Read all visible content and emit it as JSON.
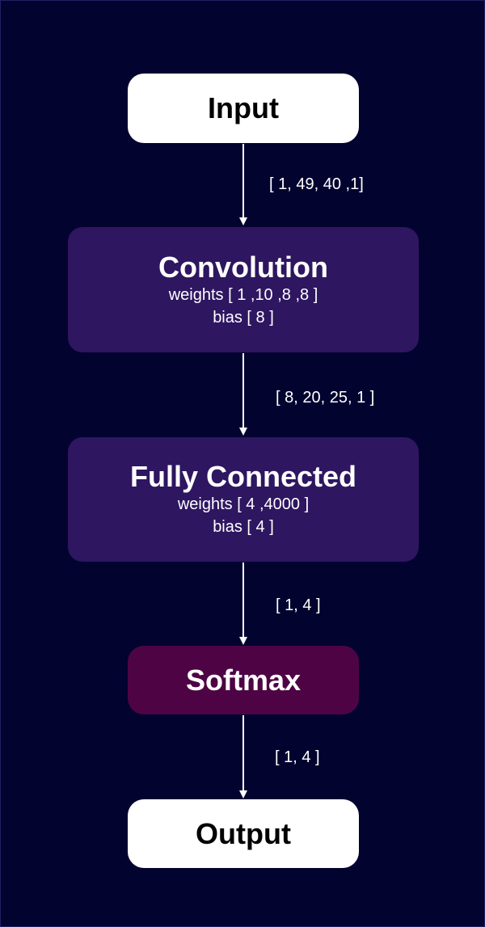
{
  "diagram": {
    "nodes": {
      "input": {
        "title": "Input"
      },
      "convolution": {
        "title": "Convolution",
        "weights": "weights [ 1 ,10 ,8 ,8 ]",
        "bias": "bias [ 8 ]"
      },
      "fully_connected": {
        "title": "Fully Connected",
        "weights": "weights [ 4 ,4000 ]",
        "bias": "bias [ 4 ]"
      },
      "softmax": {
        "title": "Softmax"
      },
      "output": {
        "title": "Output"
      }
    },
    "edges": [
      {
        "from": "Input",
        "to": "Convolution",
        "label": "[ 1, 49, 40 ,1]"
      },
      {
        "from": "Convolution",
        "to": "Fully Connected",
        "label": "[ 8, 20, 25, 1 ]"
      },
      {
        "from": "Fully Connected",
        "to": "Softmax",
        "label": "[ 1, 4 ]"
      },
      {
        "from": "Softmax",
        "to": "Output",
        "label": "[ 1, 4 ]"
      }
    ],
    "colors": {
      "background": "#030330",
      "io_node": "#ffffff",
      "layer_node": "#2e1660",
      "softmax_node": "#4e0444",
      "arrow": "#ffffff"
    }
  }
}
